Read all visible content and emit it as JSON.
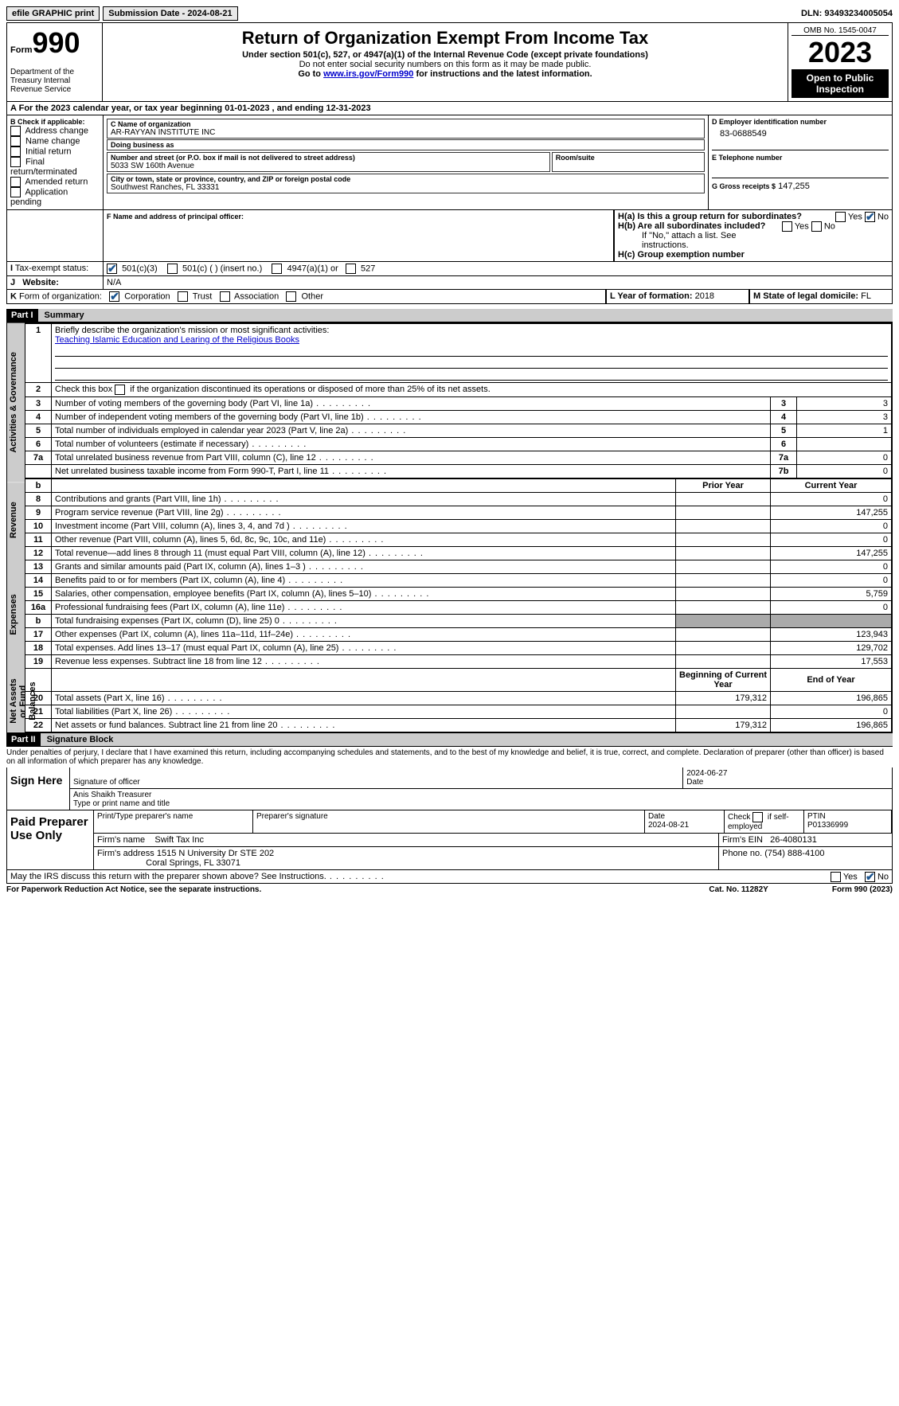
{
  "topbar": {
    "efile": "efile GRAPHIC print",
    "submission": "Submission Date - 2024-08-21",
    "dln": "DLN: 93493234005054"
  },
  "header": {
    "form": "Form",
    "num": "990",
    "title": "Return of Organization Exempt From Income Tax",
    "sub1": "Under section 501(c), 527, or 4947(a)(1) of the Internal Revenue Code (except private foundations)",
    "sub2": "Do not enter social security numbers on this form as it may be made public.",
    "sub3_pre": "Go to ",
    "sub3_link": "www.irs.gov/Form990",
    "sub3_post": " for instructions and the latest information.",
    "dept": "Department of the Treasury Internal Revenue Service",
    "omb": "OMB No. 1545-0047",
    "year": "2023",
    "pub": "Open to Public Inspection"
  },
  "taxyear": "For the 2023 calendar year, or tax year beginning 01-01-2023   , and ending 12-31-2023",
  "boxB": {
    "label": "B Check if applicable:",
    "items": [
      "Address change",
      "Name change",
      "Initial return",
      "Final return/terminated",
      "Amended return",
      "Application pending"
    ]
  },
  "boxC": {
    "label_name": "C Name of organization",
    "name": "AR-RAYYAN INSTITUTE INC",
    "dba_label": "Doing business as",
    "dba": "",
    "addr_label": "Number and street (or P.O. box if mail is not delivered to street address)",
    "addr": "5033 SW 160th Avenue",
    "room_label": "Room/suite",
    "city_label": "City or town, state or province, country, and ZIP or foreign postal code",
    "city": "Southwest Ranches, FL  33331"
  },
  "boxD": {
    "label": "D Employer identification number",
    "val": "83-0688549"
  },
  "boxE": {
    "label": "E Telephone number",
    "val": ""
  },
  "boxG": {
    "label": "G Gross receipts $",
    "val": "147,255"
  },
  "boxF": {
    "label": "F  Name and address of principal officer:",
    "val": ""
  },
  "boxH": {
    "a": "H(a)  Is this a group return for subordinates?",
    "b": "H(b)  Are all subordinates included?",
    "note": "If \"No,\" attach a list. See instructions.",
    "c": "H(c)  Group exemption number"
  },
  "boxI": {
    "label": "Tax-exempt status:",
    "opts": [
      "501(c)(3)",
      "501(c) (  ) (insert no.)",
      "4947(a)(1) or",
      "527"
    ]
  },
  "boxJ": {
    "label": "Website:",
    "val": "N/A"
  },
  "boxK": {
    "label": "Form of organization:",
    "opts": [
      "Corporation",
      "Trust",
      "Association",
      "Other"
    ]
  },
  "boxL": {
    "label": "L Year of formation:",
    "val": "2018"
  },
  "boxM": {
    "label": "M State of legal domicile:",
    "val": "FL"
  },
  "part1": {
    "hdr": "Part I",
    "title": "Summary",
    "vert_labels": [
      "Activities & Governance",
      "Revenue",
      "Expenses",
      "Net Assets or Fund Balances"
    ],
    "l1": "Briefly describe the organization's mission or most significant activities:",
    "l1v": "Teaching Islamic Education and Learing of the Religious Books",
    "l2": "Check this box      if the organization discontinued its operations or disposed of more than 25% of its net assets.",
    "rows_gov": [
      {
        "n": "3",
        "t": "Number of voting members of the governing body (Part VI, line 1a)",
        "lbl": "3",
        "v": "3"
      },
      {
        "n": "4",
        "t": "Number of independent voting members of the governing body (Part VI, line 1b)",
        "lbl": "4",
        "v": "3"
      },
      {
        "n": "5",
        "t": "Total number of individuals employed in calendar year 2023 (Part V, line 2a)",
        "lbl": "5",
        "v": "1"
      },
      {
        "n": "6",
        "t": "Total number of volunteers (estimate if necessary)",
        "lbl": "6",
        "v": ""
      },
      {
        "n": "7a",
        "t": "Total unrelated business revenue from Part VIII, column (C), line 12",
        "lbl": "7a",
        "v": "0"
      },
      {
        "n": "",
        "t": "Net unrelated business taxable income from Form 990-T, Part I, line 11",
        "lbl": "7b",
        "v": "0"
      }
    ],
    "col_hdrs": [
      "Prior Year",
      "Current Year"
    ],
    "rows_rev": [
      {
        "n": "8",
        "t": "Contributions and grants (Part VIII, line 1h)",
        "p": "",
        "c": "0"
      },
      {
        "n": "9",
        "t": "Program service revenue (Part VIII, line 2g)",
        "p": "",
        "c": "147,255"
      },
      {
        "n": "10",
        "t": "Investment income (Part VIII, column (A), lines 3, 4, and 7d )",
        "p": "",
        "c": "0"
      },
      {
        "n": "11",
        "t": "Other revenue (Part VIII, column (A), lines 5, 6d, 8c, 9c, 10c, and 11e)",
        "p": "",
        "c": "0"
      },
      {
        "n": "12",
        "t": "Total revenue—add lines 8 through 11 (must equal Part VIII, column (A), line 12)",
        "p": "",
        "c": "147,255"
      }
    ],
    "rows_exp": [
      {
        "n": "13",
        "t": "Grants and similar amounts paid (Part IX, column (A), lines 1–3 )",
        "p": "",
        "c": "0"
      },
      {
        "n": "14",
        "t": "Benefits paid to or for members (Part IX, column (A), line 4)",
        "p": "",
        "c": "0"
      },
      {
        "n": "15",
        "t": "Salaries, other compensation, employee benefits (Part IX, column (A), lines 5–10)",
        "p": "",
        "c": "5,759"
      },
      {
        "n": "16a",
        "t": "Professional fundraising fees (Part IX, column (A), line 11e)",
        "p": "",
        "c": "0"
      },
      {
        "n": "b",
        "t": "Total fundraising expenses (Part IX, column (D), line 25) 0",
        "p": "shade",
        "c": "shade"
      },
      {
        "n": "17",
        "t": "Other expenses (Part IX, column (A), lines 11a–11d, 11f–24e)",
        "p": "",
        "c": "123,943"
      },
      {
        "n": "18",
        "t": "Total expenses. Add lines 13–17 (must equal Part IX, column (A), line 25)",
        "p": "",
        "c": "129,702"
      },
      {
        "n": "19",
        "t": "Revenue less expenses. Subtract line 18 from line 12",
        "p": "",
        "c": "17,553"
      }
    ],
    "col_hdrs2": [
      "Beginning of Current Year",
      "End of Year"
    ],
    "rows_na": [
      {
        "n": "20",
        "t": "Total assets (Part X, line 16)",
        "p": "179,312",
        "c": "196,865"
      },
      {
        "n": "21",
        "t": "Total liabilities (Part X, line 26)",
        "p": "",
        "c": "0"
      },
      {
        "n": "22",
        "t": "Net assets or fund balances. Subtract line 21 from line 20",
        "p": "179,312",
        "c": "196,865"
      }
    ]
  },
  "part2": {
    "hdr": "Part II",
    "title": "Signature Block",
    "decl": "Under penalties of perjury, I declare that I have examined this return, including accompanying schedules and statements, and to the best of my knowledge and belief, it is true, correct, and complete. Declaration of preparer (other than officer) is based on all information of which preparer has any knowledge."
  },
  "sign": {
    "label": "Sign Here",
    "sig_label": "Signature of officer",
    "name": "Anis Shaikh Treasurer",
    "type_label": "Type or print name and title",
    "date_label": "Date",
    "date": "2024-06-27"
  },
  "prep": {
    "label": "Paid Preparer Use Only",
    "h1": "Print/Type preparer's name",
    "h2": "Preparer's signature",
    "h3": "Date",
    "date": "2024-08-21",
    "h4_pre": "Check",
    "h4_post": "if self-employed",
    "h5": "PTIN",
    "ptin": "P01336999",
    "firm_label": "Firm's name",
    "firm": "Swift Tax Inc",
    "ein_label": "Firm's EIN",
    "ein": "26-4080131",
    "addr_label": "Firm's address",
    "addr1": "1515 N University Dr STE 202",
    "addr2": "Coral Springs, FL  33071",
    "phone_label": "Phone no.",
    "phone": "(754) 888-4100"
  },
  "discuss": "May the IRS discuss this return with the preparer shown above? See Instructions.",
  "footer": {
    "l": "For Paperwork Reduction Act Notice, see the separate instructions.",
    "m": "Cat. No. 11282Y",
    "r": "Form 990 (2023)"
  },
  "yn": {
    "yes": "Yes",
    "no": "No"
  }
}
